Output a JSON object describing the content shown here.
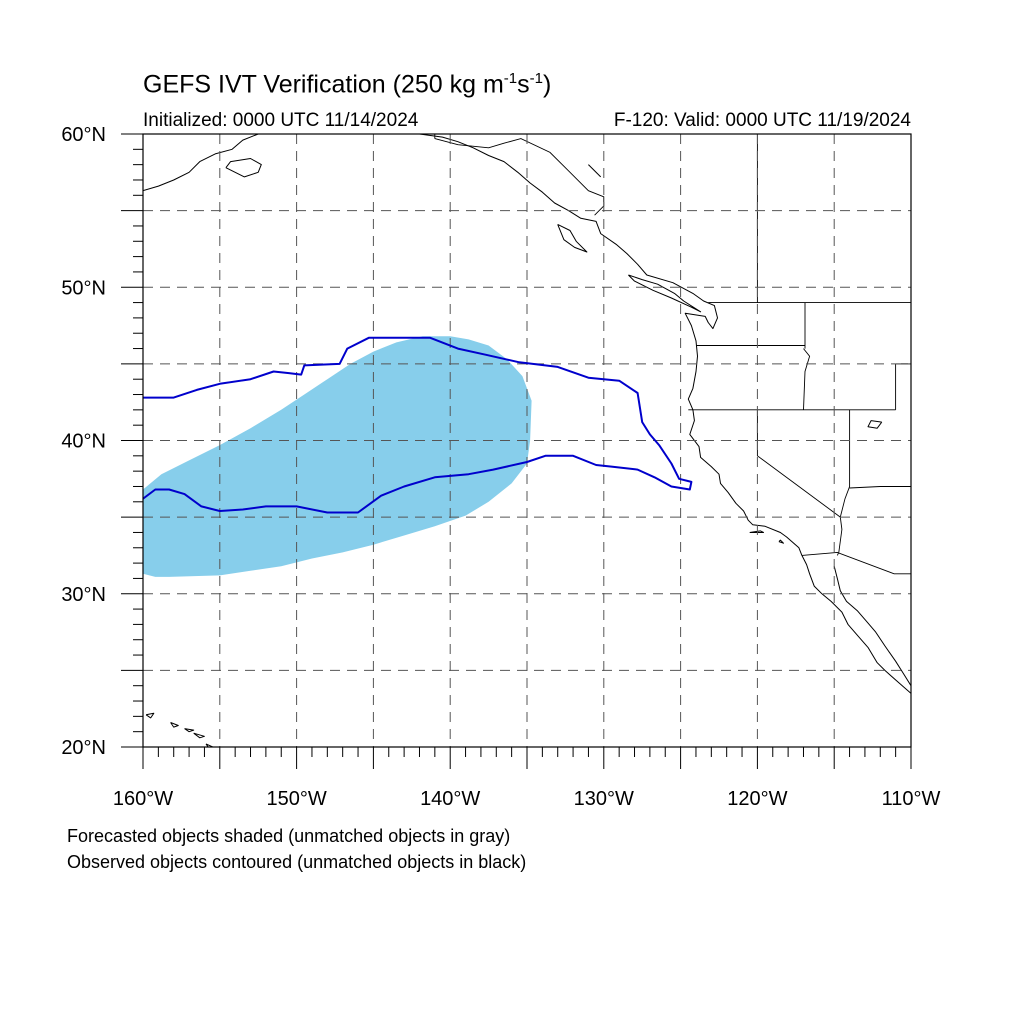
{
  "header": {
    "title_main": "GEFS IVT Verification (250 kg m",
    "title_sup1": "-1",
    "title_mid": "s",
    "title_sup2": "-1",
    "title_end": ")",
    "initialized": "Initialized: 0000 UTC 11/14/2024",
    "valid": "F-120: Valid: 0000 UTC 11/19/2024"
  },
  "footer": {
    "note_forecast": "Forecasted objects shaded (unmatched objects in gray)",
    "note_observed": "Observed objects contoured (unmatched objects in black)"
  },
  "map": {
    "extent": {
      "lon": [
        -160,
        -110
      ],
      "lat": [
        20,
        60
      ]
    },
    "lat_labels": [
      {
        "lat": 60,
        "text": "60°N"
      },
      {
        "lat": 50,
        "text": "50°N"
      },
      {
        "lat": 40,
        "text": "40°N"
      },
      {
        "lat": 30,
        "text": "30°N"
      },
      {
        "lat": 20,
        "text": "20°N"
      }
    ],
    "lon_labels": [
      {
        "lon": -160,
        "text": "160°W"
      },
      {
        "lon": -150,
        "text": "150°W"
      },
      {
        "lon": -140,
        "text": "140°W"
      },
      {
        "lon": -130,
        "text": "130°W"
      },
      {
        "lon": -120,
        "text": "120°W"
      },
      {
        "lon": -110,
        "text": "110°W"
      }
    ],
    "grid_lons": [
      -155,
      -150,
      -145,
      -140,
      -135,
      -130,
      -125,
      -120,
      -115
    ],
    "grid_lats": [
      25,
      30,
      35,
      40,
      45,
      50,
      55
    ],
    "colors": {
      "forecast_fill": "#87ceeb",
      "observed_contour": "#0000cc",
      "coast": "#000000",
      "grid": "#555555"
    },
    "forecast_object": [
      [
        -160,
        31.3
      ],
      [
        -159.2,
        31.1
      ],
      [
        -158.3,
        31.1
      ],
      [
        -155,
        31.2
      ],
      [
        -153,
        31.5
      ],
      [
        -151,
        31.8
      ],
      [
        -149,
        32.3
      ],
      [
        -147,
        32.7
      ],
      [
        -145,
        33.2
      ],
      [
        -143,
        33.8
      ],
      [
        -141,
        34.4
      ],
      [
        -139,
        35.1
      ],
      [
        -137.5,
        36.0
      ],
      [
        -136,
        37.2
      ],
      [
        -135,
        38.5
      ],
      [
        -134.8,
        40.0
      ],
      [
        -134.7,
        42.6
      ],
      [
        -135.3,
        44.2
      ],
      [
        -136.3,
        45.3
      ],
      [
        -137.5,
        46.2
      ],
      [
        -138.8,
        46.6
      ],
      [
        -140,
        46.8
      ],
      [
        -141.8,
        46.8
      ],
      [
        -143.5,
        46.4
      ],
      [
        -145,
        45.8
      ],
      [
        -146.5,
        45.0
      ],
      [
        -148,
        44.0
      ],
      [
        -149.5,
        43.0
      ],
      [
        -151,
        42.0
      ],
      [
        -153,
        40.8
      ],
      [
        -155,
        39.7
      ],
      [
        -157,
        38.7
      ],
      [
        -158.8,
        37.8
      ],
      [
        -160,
        36.8
      ]
    ],
    "observed_object": [
      [
        -160,
        42.8
      ],
      [
        -158,
        42.8
      ],
      [
        -156.5,
        43.3
      ],
      [
        -155,
        43.7
      ],
      [
        -153,
        44.0
      ],
      [
        -151.5,
        44.5
      ],
      [
        -150.5,
        44.4
      ],
      [
        -149.7,
        44.3
      ],
      [
        -149.5,
        44.9
      ],
      [
        -147.2,
        45.0
      ],
      [
        -146.7,
        46.0
      ],
      [
        -145.3,
        46.7
      ],
      [
        -141.3,
        46.7
      ],
      [
        -139.5,
        46.0
      ],
      [
        -137.7,
        45.6
      ],
      [
        -135.5,
        45.1
      ],
      [
        -133,
        44.8
      ],
      [
        -131,
        44.1
      ],
      [
        -129,
        43.9
      ],
      [
        -127.8,
        43.1
      ],
      [
        -127.5,
        41.2
      ],
      [
        -127,
        40.4
      ],
      [
        -126.4,
        39.7
      ],
      [
        -125.6,
        38.5
      ],
      [
        -125.1,
        37.5
      ],
      [
        -124.3,
        37.3
      ],
      [
        -124.4,
        36.8
      ],
      [
        -125.6,
        37.0
      ],
      [
        -126.7,
        37.6
      ],
      [
        -127.8,
        38.1
      ],
      [
        -129.5,
        38.3
      ],
      [
        -130.5,
        38.4
      ],
      [
        -132,
        39.0
      ],
      [
        -133.8,
        39.0
      ],
      [
        -135,
        38.6
      ],
      [
        -137.2,
        38.1
      ],
      [
        -138.8,
        37.8
      ],
      [
        -141,
        37.6
      ],
      [
        -143,
        37.0
      ],
      [
        -144.5,
        36.4
      ],
      [
        -146,
        35.3
      ],
      [
        -148,
        35.3
      ],
      [
        -150,
        35.7
      ],
      [
        -152,
        35.7
      ],
      [
        -153.5,
        35.5
      ],
      [
        -155,
        35.4
      ],
      [
        -156.2,
        35.7
      ],
      [
        -157.3,
        36.5
      ],
      [
        -158.3,
        36.8
      ],
      [
        -159.2,
        36.8
      ],
      [
        -160,
        36.2
      ]
    ],
    "coastlines": [
      [
        [
          -160,
          56.3
        ],
        [
          -159,
          56.6
        ],
        [
          -158,
          57.0
        ],
        [
          -157,
          57.5
        ],
        [
          -156.3,
          58.2
        ],
        [
          -155.3,
          58.7
        ],
        [
          -154.2,
          59.0
        ],
        [
          -153.5,
          59.6
        ],
        [
          -152.5,
          60
        ]
      ],
      [
        [
          -154.6,
          57.8
        ],
        [
          -153.4,
          57.2
        ],
        [
          -152.5,
          57.5
        ],
        [
          -152.3,
          58.0
        ],
        [
          -153,
          58.4
        ],
        [
          -154.3,
          58.2
        ],
        [
          -154.6,
          57.8
        ]
      ],
      [
        [
          -147,
          60
        ],
        [
          -145.5,
          60.2
        ],
        [
          -144,
          60.1
        ],
        [
          -142,
          60.0
        ],
        [
          -140.5,
          59.8
        ],
        [
          -139.5,
          59.5
        ],
        [
          -138.5,
          59.1
        ],
        [
          -137.5,
          58.6
        ],
        [
          -136.5,
          58.2
        ],
        [
          -135.6,
          57.5
        ],
        [
          -134.8,
          56.8
        ],
        [
          -134,
          56.2
        ],
        [
          -133.2,
          55.5
        ],
        [
          -132.3,
          55.0
        ],
        [
          -131.5,
          54.5
        ],
        [
          -130.5,
          54.3
        ],
        [
          -130.2,
          53.5
        ],
        [
          -129.2,
          52.8
        ],
        [
          -128.5,
          52.2
        ],
        [
          -127.8,
          51.5
        ],
        [
          -127.2,
          50.8
        ],
        [
          -125.5,
          50.3
        ],
        [
          -124.2,
          49.6
        ],
        [
          -123.5,
          49.1
        ],
        [
          -122.8,
          48.8
        ],
        [
          -122.6,
          48.0
        ],
        [
          -122.9,
          47.3
        ],
        [
          -123.2,
          47.7
        ],
        [
          -123.4,
          48.1
        ],
        [
          -124.7,
          48.3
        ],
        [
          -124.3,
          47.5
        ],
        [
          -124.0,
          46.5
        ],
        [
          -123.9,
          45.5
        ],
        [
          -124.0,
          44.5
        ],
        [
          -124.2,
          43.4
        ],
        [
          -124.5,
          42.7
        ],
        [
          -124.2,
          42.0
        ],
        [
          -124.1,
          41.3
        ],
        [
          -124.4,
          40.4
        ],
        [
          -123.8,
          39.6
        ],
        [
          -123.7,
          38.9
        ],
        [
          -123.0,
          38.3
        ],
        [
          -122.5,
          37.8
        ],
        [
          -122.4,
          37.2
        ],
        [
          -121.9,
          36.6
        ],
        [
          -121.4,
          35.9
        ],
        [
          -120.9,
          35.4
        ],
        [
          -120.6,
          34.8
        ],
        [
          -120.3,
          34.5
        ],
        [
          -119.5,
          34.4
        ],
        [
          -118.5,
          34.0
        ],
        [
          -118.1,
          33.7
        ],
        [
          -117.3,
          33.0
        ],
        [
          -117.1,
          32.5
        ],
        [
          -116.8,
          31.9
        ],
        [
          -116.6,
          31.3
        ],
        [
          -116.3,
          30.5
        ],
        [
          -115.8,
          30.0
        ],
        [
          -115.2,
          29.5
        ],
        [
          -114.5,
          28.8
        ],
        [
          -114.1,
          28.0
        ],
        [
          -113.5,
          27.3
        ],
        [
          -112.8,
          26.5
        ],
        [
          -112.2,
          25.5
        ],
        [
          -111.7,
          25.0
        ],
        [
          -110.8,
          24.2
        ],
        [
          -110,
          23.5
        ]
      ],
      [
        [
          -115.0,
          31.8
        ],
        [
          -114.8,
          31.0
        ],
        [
          -114.6,
          30.2
        ],
        [
          -114.2,
          29.5
        ],
        [
          -113.5,
          28.9
        ],
        [
          -112.9,
          28.2
        ],
        [
          -112.3,
          27.5
        ],
        [
          -111.7,
          26.6
        ],
        [
          -111.0,
          25.6
        ],
        [
          -110.5,
          24.8
        ],
        [
          -110,
          24.0
        ]
      ],
      [
        [
          -128.4,
          50.8
        ],
        [
          -127.5,
          50.5
        ],
        [
          -126.5,
          50.2
        ],
        [
          -125.4,
          49.6
        ],
        [
          -124.8,
          49.1
        ],
        [
          -123.7,
          48.4
        ],
        [
          -124.3,
          48.7
        ],
        [
          -125.6,
          49.3
        ],
        [
          -126.8,
          49.8
        ],
        [
          -128.0,
          50.4
        ],
        [
          -128.4,
          50.8
        ]
      ],
      [
        [
          -133.0,
          54.1
        ],
        [
          -132.2,
          53.7
        ],
        [
          -131.8,
          53.0
        ],
        [
          -131.1,
          52.3
        ],
        [
          -131.9,
          52.6
        ],
        [
          -132.6,
          53.1
        ],
        [
          -133.0,
          54.1
        ]
      ],
      [
        [
          -118.6,
          33.4
        ],
        [
          -118.3,
          33.3
        ],
        [
          -118.5,
          33.5
        ],
        [
          -118.6,
          33.4
        ]
      ],
      [
        [
          -120.5,
          34.0
        ],
        [
          -119.6,
          34.0
        ],
        [
          -119.8,
          34.1
        ],
        [
          -120.5,
          34.0
        ]
      ],
      [
        [
          -159.8,
          22.1
        ],
        [
          -159.3,
          22.2
        ],
        [
          -159.5,
          21.9
        ],
        [
          -159.8,
          22.1
        ]
      ],
      [
        [
          -158.2,
          21.6
        ],
        [
          -157.7,
          21.4
        ],
        [
          -158.0,
          21.3
        ],
        [
          -158.2,
          21.6
        ]
      ],
      [
        [
          -157.3,
          21.2
        ],
        [
          -156.7,
          21.1
        ],
        [
          -157.0,
          21.0
        ],
        [
          -157.3,
          21.2
        ]
      ],
      [
        [
          -156.7,
          20.9
        ],
        [
          -156.0,
          20.7
        ],
        [
          -156.3,
          20.6
        ],
        [
          -156.7,
          20.9
        ]
      ],
      [
        [
          -155.9,
          20.2
        ],
        [
          -155.0,
          19.8
        ],
        [
          -155.5,
          19.6
        ],
        [
          -155.9,
          20.2
        ]
      ],
      [
        [
          -111.9,
          41.2
        ],
        [
          -112.6,
          41.3
        ],
        [
          -112.8,
          40.9
        ],
        [
          -112.2,
          40.8
        ],
        [
          -111.9,
          41.2
        ]
      ],
      [
        [
          -131,
          58
        ],
        [
          -130.2,
          57.2
        ]
      ]
    ],
    "borders": [
      [
        [
          -123.2,
          49.0
        ],
        [
          -110,
          49.0
        ]
      ],
      [
        [
          -141,
          60
        ],
        [
          -141,
          59.7
        ]
      ],
      [
        [
          -141,
          59.7
        ],
        [
          -139.5,
          59.3
        ],
        [
          -137.5,
          59.1
        ],
        [
          -136.5,
          59.4
        ],
        [
          -135.4,
          59.7
        ],
        [
          -133.5,
          58.8
        ],
        [
          -132.2,
          57.5
        ],
        [
          -131.0,
          56.3
        ],
        [
          -130.0,
          55.9
        ],
        [
          -130.0,
          55.3
        ],
        [
          -130.6,
          54.7
        ]
      ],
      [
        [
          -120,
          60
        ],
        [
          -120,
          49.0
        ]
      ],
      [
        [
          -124.5,
          42.0
        ],
        [
          -111.0,
          42.0
        ]
      ],
      [
        [
          -120,
          42.0
        ],
        [
          -120,
          39.0
        ],
        [
          -114.6,
          35.0
        ]
      ],
      [
        [
          -116.9,
          46.0
        ],
        [
          -116.9,
          49.0
        ]
      ],
      [
        [
          -124.0,
          46.2
        ],
        [
          -116.9,
          46.2
        ]
      ],
      [
        [
          -117.0,
          46.0
        ],
        [
          -116.6,
          45.5
        ],
        [
          -116.9,
          44.5
        ],
        [
          -117.0,
          42.0
        ]
      ],
      [
        [
          -114.0,
          42.0
        ],
        [
          -114.0,
          37.0
        ],
        [
          -114.3,
          36.2
        ],
        [
          -114.6,
          35.0
        ]
      ],
      [
        [
          -114.6,
          35.0
        ],
        [
          -114.5,
          34.2
        ],
        [
          -114.7,
          32.7
        ],
        [
          -114.8,
          32.5
        ]
      ],
      [
        [
          -117.1,
          32.5
        ],
        [
          -114.8,
          32.7
        ],
        [
          -111.1,
          31.3
        ],
        [
          -110,
          31.3
        ]
      ],
      [
        [
          -114.0,
          36.9
        ],
        [
          -112,
          37.0
        ],
        [
          -110,
          37.0
        ]
      ],
      [
        [
          -111.0,
          42.0
        ],
        [
          -111.0,
          44.5
        ],
        [
          -111.0,
          45.0
        ]
      ],
      [
        [
          -110,
          45.0
        ],
        [
          -111.0,
          45.0
        ]
      ]
    ]
  }
}
